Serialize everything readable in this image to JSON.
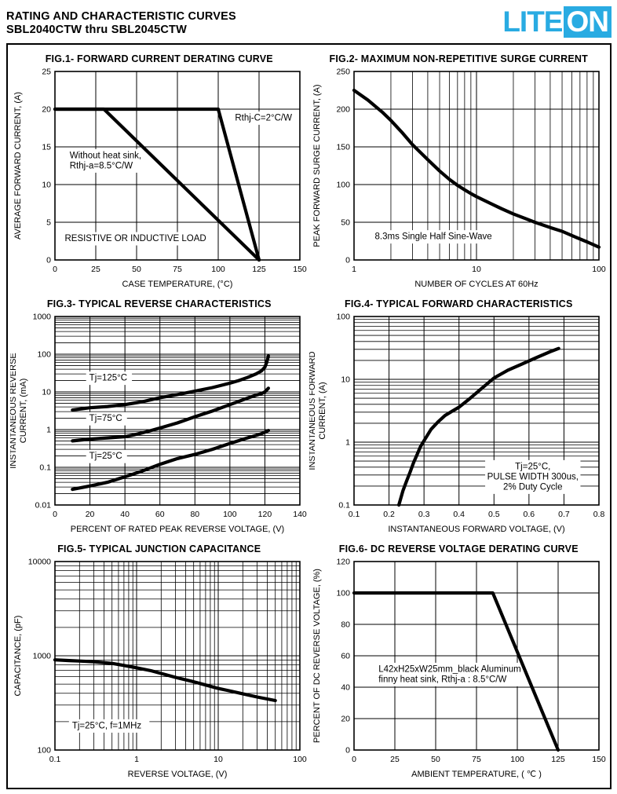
{
  "header": {
    "title_line1": "RATING AND CHARACTERISTIC CURVES",
    "title_line2": "SBL2040CTW thru SBL2045CTW",
    "logo": {
      "text_left": "LITE",
      "text_right": "ON",
      "color": "#29ABE2",
      "text_right_color": "#ffffff"
    }
  },
  "chart_data": [
    {
      "id": "fig1",
      "type": "line",
      "title": "FIG.1- FORWARD CURRENT DERATING CURVE",
      "xlabel": "CASE TEMPERATURE, (°C)",
      "ylabel": "AVERAGE FORWARD CURRENT, (A)",
      "xscale": "linear",
      "yscale": "linear",
      "xlim": [
        0,
        150
      ],
      "ylim": [
        0,
        25
      ],
      "xticks": [
        0,
        25,
        50,
        75,
        100,
        125,
        150
      ],
      "xtick_labels": [
        "0",
        "25",
        "50",
        "75",
        "100",
        "125",
        "150"
      ],
      "yticks": [
        0,
        5,
        10,
        15,
        20,
        25
      ],
      "ytick_labels": [
        "0",
        "5",
        "10",
        "15",
        "20",
        "25"
      ],
      "xminor": false,
      "yminor": false,
      "series": [
        {
          "name": "Rthj-C=2°C/W",
          "points": [
            [
              0,
              20
            ],
            [
              100,
              20
            ],
            [
              125,
              0
            ]
          ]
        },
        {
          "name": "Without heat sink, Rthj-a=8.5°C/W",
          "points": [
            [
              0,
              20
            ],
            [
              30,
              20
            ],
            [
              125,
              0
            ]
          ]
        }
      ],
      "annotations": [
        {
          "text": "Rthj-C=2°C/W",
          "fx": 0.735,
          "fy": 0.26,
          "align": "left"
        },
        {
          "text": "Without heat sink,\nRthj-a=8.5°C/W",
          "fx": 0.06,
          "fy": 0.46,
          "align": "left"
        },
        {
          "text": "RESISTIVE OR INDUCTIVE LOAD",
          "fx": 0.04,
          "fy": 0.9,
          "align": "left"
        }
      ]
    },
    {
      "id": "fig2",
      "type": "line",
      "title": "FIG.2- MAXIMUM NON-REPETITIVE SURGE CURRENT",
      "xlabel": "NUMBER OF CYCLES AT 60Hz",
      "ylabel": "PEAK FORWARD SURGE CURRENT, (A)",
      "xscale": "log",
      "yscale": "linear",
      "xlim": [
        1,
        100
      ],
      "ylim": [
        0,
        250
      ],
      "xticks": [
        1,
        10,
        100
      ],
      "xtick_labels": [
        "1",
        "10",
        "100"
      ],
      "yticks": [
        0,
        50,
        100,
        150,
        200,
        250
      ],
      "ytick_labels": [
        "0",
        "50",
        "100",
        "150",
        "200",
        "250"
      ],
      "xminor": true,
      "yminor": false,
      "series": [
        {
          "name": "8.3ms Single Half Sine-Wave",
          "points": [
            [
              1,
              225
            ],
            [
              1.3,
              212
            ],
            [
              1.7,
              196
            ],
            [
              2,
              185
            ],
            [
              2.5,
              168
            ],
            [
              3,
              153
            ],
            [
              4,
              133
            ],
            [
              5,
              118
            ],
            [
              6,
              107
            ],
            [
              7,
              99
            ],
            [
              8,
              93
            ],
            [
              9,
              88
            ],
            [
              10,
              84
            ],
            [
              13,
              75
            ],
            [
              16,
              68
            ],
            [
              20,
              61
            ],
            [
              25,
              55
            ],
            [
              30,
              50
            ],
            [
              40,
              43
            ],
            [
              50,
              38
            ],
            [
              65,
              30
            ],
            [
              80,
              24
            ],
            [
              100,
              17
            ]
          ]
        }
      ],
      "annotations": [
        {
          "text": "8.3ms Single Half Sine-Wave",
          "fx": 0.085,
          "fy": 0.89,
          "align": "left"
        }
      ]
    },
    {
      "id": "fig3",
      "type": "line",
      "title": "FIG.3- TYPICAL REVERSE CHARACTERISTICS",
      "xlabel": "PERCENT OF RATED PEAK REVERSE VOLTAGE, (V)",
      "ylabel": "INSTANTANEOUS REVERSE\nCURRENT, (mA)",
      "xscale": "linear",
      "yscale": "log",
      "xlim": [
        0,
        140
      ],
      "ylim": [
        0.01,
        1000
      ],
      "xticks": [
        0,
        20,
        40,
        60,
        80,
        100,
        120,
        140
      ],
      "xtick_labels": [
        "0",
        "20",
        "40",
        "60",
        "80",
        "100",
        "120",
        "140"
      ],
      "yticks": [
        0.01,
        0.1,
        1,
        10,
        100,
        1000
      ],
      "ytick_labels": [
        "0.01",
        "0.1",
        "1",
        "10",
        "100",
        "1000"
      ],
      "xminor": false,
      "yminor": true,
      "series": [
        {
          "name": "Tj=125°C",
          "points": [
            [
              10,
              3.3
            ],
            [
              20,
              3.8
            ],
            [
              30,
              4.1
            ],
            [
              40,
              4.6
            ],
            [
              50,
              5.5
            ],
            [
              60,
              7
            ],
            [
              70,
              8.5
            ],
            [
              80,
              10.5
            ],
            [
              90,
              13
            ],
            [
              100,
              17
            ],
            [
              105,
              20
            ],
            [
              110,
              24
            ],
            [
              115,
              30
            ],
            [
              118,
              36
            ],
            [
              120,
              45
            ],
            [
              121,
              60
            ],
            [
              122,
              90
            ]
          ]
        },
        {
          "name": "Tj=75°C",
          "points": [
            [
              10,
              0.5
            ],
            [
              20,
              0.56
            ],
            [
              30,
              0.6
            ],
            [
              40,
              0.65
            ],
            [
              45,
              0.72
            ],
            [
              50,
              0.82
            ],
            [
              55,
              0.95
            ],
            [
              60,
              1.1
            ],
            [
              70,
              1.5
            ],
            [
              80,
              2.2
            ],
            [
              90,
              3.1
            ],
            [
              100,
              4.6
            ],
            [
              105,
              5.6
            ],
            [
              110,
              6.8
            ],
            [
              115,
              8.2
            ],
            [
              118,
              9
            ],
            [
              120,
              10
            ],
            [
              122,
              12.5
            ]
          ]
        },
        {
          "name": "Tj=25°C",
          "points": [
            [
              10,
              0.026
            ],
            [
              20,
              0.032
            ],
            [
              30,
              0.04
            ],
            [
              40,
              0.056
            ],
            [
              50,
              0.08
            ],
            [
              60,
              0.12
            ],
            [
              70,
              0.17
            ],
            [
              80,
              0.22
            ],
            [
              90,
              0.3
            ],
            [
              100,
              0.43
            ],
            [
              110,
              0.6
            ],
            [
              115,
              0.7
            ],
            [
              118,
              0.78
            ],
            [
              120,
              0.85
            ],
            [
              122,
              0.95
            ]
          ]
        }
      ],
      "annotations": [
        {
          "text": "Tj=125°C",
          "fx": 0.14,
          "fy": 0.34,
          "align": "left"
        },
        {
          "text": "Tj=75°C",
          "fx": 0.14,
          "fy": 0.555,
          "align": "left"
        },
        {
          "text": "Tj=25°C",
          "fx": 0.14,
          "fy": 0.755,
          "align": "left"
        }
      ]
    },
    {
      "id": "fig4",
      "type": "line",
      "title": "FIG.4- TYPICAL FORWARD CHARACTERISTICS",
      "xlabel": "INSTANTANEOUS FORWARD VOLTAGE, (V)",
      "ylabel": "INSTANTANEOUS FORWARD\nCURRENT, (A)",
      "xscale": "linear",
      "yscale": "log",
      "xlim": [
        0.1,
        0.8
      ],
      "ylim": [
        0.1,
        100
      ],
      "xticks": [
        0.1,
        0.2,
        0.3,
        0.4,
        0.5,
        0.6,
        0.7,
        0.8
      ],
      "xtick_labels": [
        "0.1",
        "0.2",
        "0.3",
        "0.4",
        "0.5",
        "0.6",
        "0.7",
        "0.8"
      ],
      "yticks": [
        0.1,
        1,
        10,
        100
      ],
      "ytick_labels": [
        "0.1",
        "1",
        "10",
        "100"
      ],
      "xminor": false,
      "yminor": true,
      "series": [
        {
          "name": "Tj=25°C, PULSE WIDTH 300us, 2% Duty Cycle",
          "points": [
            [
              0.228,
              0.1
            ],
            [
              0.24,
              0.17
            ],
            [
              0.25,
              0.24
            ],
            [
              0.26,
              0.33
            ],
            [
              0.27,
              0.47
            ],
            [
              0.28,
              0.63
            ],
            [
              0.29,
              0.85
            ],
            [
              0.3,
              1.05
            ],
            [
              0.32,
              1.6
            ],
            [
              0.34,
              2.1
            ],
            [
              0.36,
              2.65
            ],
            [
              0.38,
              3.1
            ],
            [
              0.4,
              3.6
            ],
            [
              0.43,
              4.9
            ],
            [
              0.46,
              6.8
            ],
            [
              0.5,
              10.5
            ],
            [
              0.54,
              14
            ],
            [
              0.58,
              17.5
            ],
            [
              0.62,
              22
            ],
            [
              0.66,
              27.5
            ],
            [
              0.685,
              31
            ]
          ]
        }
      ],
      "annotations": [
        {
          "text": "Tj=25°C,\nPULSE WIDTH 300us,\n2% Duty Cycle",
          "fx": 0.73,
          "fy": 0.81,
          "align": "center"
        }
      ]
    },
    {
      "id": "fig5",
      "type": "line",
      "title": "FIG.5- TYPICAL JUNCTION CAPACITANCE",
      "xlabel": "REVERSE VOLTAGE, (V)",
      "ylabel": "CAPACITANCE, (pF)",
      "xscale": "log",
      "yscale": "log",
      "xlim": [
        0.1,
        100
      ],
      "ylim": [
        100,
        10000
      ],
      "xticks": [
        0.1,
        1,
        10,
        100
      ],
      "xtick_labels": [
        "0.1",
        "1",
        "10",
        "100"
      ],
      "yticks": [
        100,
        1000,
        10000
      ],
      "ytick_labels": [
        "100",
        "1000",
        "10000"
      ],
      "xminor": true,
      "yminor": true,
      "series": [
        {
          "name": "Tj=25°C, f=1MHz",
          "points": [
            [
              0.1,
              905
            ],
            [
              0.15,
              890
            ],
            [
              0.2,
              880
            ],
            [
              0.3,
              865
            ],
            [
              0.5,
              830
            ],
            [
              0.7,
              790
            ],
            [
              1,
              745
            ],
            [
              1.5,
              695
            ],
            [
              2,
              650
            ],
            [
              3,
              590
            ],
            [
              5,
              530
            ],
            [
              7,
              490
            ],
            [
              10,
              450
            ],
            [
              15,
              418
            ],
            [
              20,
              395
            ],
            [
              30,
              365
            ],
            [
              50,
              335
            ]
          ]
        }
      ],
      "annotations": [
        {
          "text": "Tj=25°C, f=1MHz",
          "fx": 0.07,
          "fy": 0.885,
          "align": "left"
        }
      ]
    },
    {
      "id": "fig6",
      "type": "line",
      "title": "FIG.6- DC REVERSE VOLTAGE DERATING CURVE",
      "xlabel": "AMBIENT TEMPERATURE, ( ℃ )",
      "ylabel": "PERCENT OF DC REVERSE VOLTAGE, (%)",
      "xscale": "linear",
      "yscale": "linear",
      "xlim": [
        0,
        150
      ],
      "ylim": [
        0,
        120
      ],
      "xticks": [
        0,
        25,
        50,
        75,
        100,
        125,
        150
      ],
      "xtick_labels": [
        "0",
        "25",
        "50",
        "75",
        "100",
        "125",
        "150"
      ],
      "yticks": [
        0,
        20,
        40,
        60,
        80,
        100,
        120
      ],
      "ytick_labels": [
        "0",
        "20",
        "40",
        "60",
        "80",
        "100",
        "120"
      ],
      "xminor": false,
      "yminor": false,
      "series": [
        {
          "name": "L42xH25xW25mm_black Aluminum finny heat sink, Rthj-a : 8.5°C/W",
          "points": [
            [
              0,
              100
            ],
            [
              85,
              100
            ],
            [
              125,
              0
            ]
          ]
        }
      ],
      "annotations": [
        {
          "text": "L42xH25xW25mm_black Aluminum\nfinny heat sink, Rthj-a : 8.5°C/W",
          "fx": 0.1,
          "fy": 0.585,
          "align": "left"
        }
      ]
    }
  ]
}
